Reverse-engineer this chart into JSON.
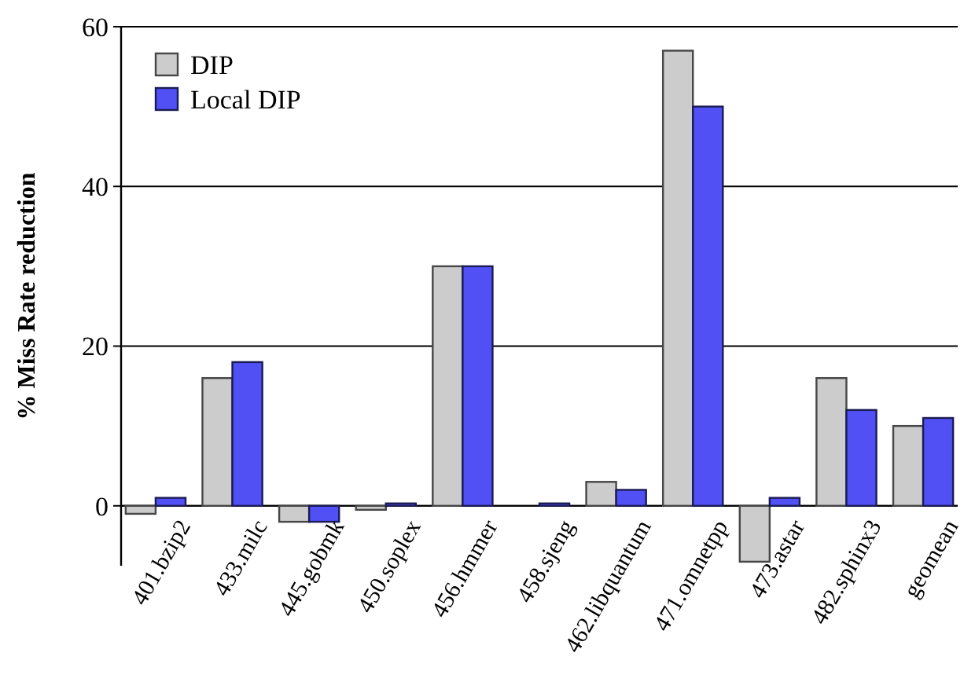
{
  "chart_data": {
    "type": "bar",
    "ylabel": "% Miss Rate reduction",
    "categories": [
      "401.bzip2",
      "433.milc",
      "445.gobmk",
      "450.soplex",
      "456.hmmer",
      "458.sjeng",
      "462.libquantum",
      "471.omnetpp",
      "473.astar",
      "482.sphinx3",
      "geomean"
    ],
    "series": [
      {
        "name": "DIP",
        "color": "#cccccc",
        "values": [
          -1,
          16,
          -2,
          -0.5,
          30,
          0,
          3,
          57,
          -7,
          16,
          10
        ]
      },
      {
        "name": "Local DIP",
        "color": "#5050f5",
        "values": [
          1,
          18,
          -2,
          0.3,
          30,
          0.3,
          2,
          50,
          1,
          12,
          11
        ]
      }
    ],
    "ylim": [
      -7.5,
      60
    ],
    "yticks": [
      0,
      20,
      40,
      60
    ],
    "grid": "y",
    "legend": "top left"
  }
}
